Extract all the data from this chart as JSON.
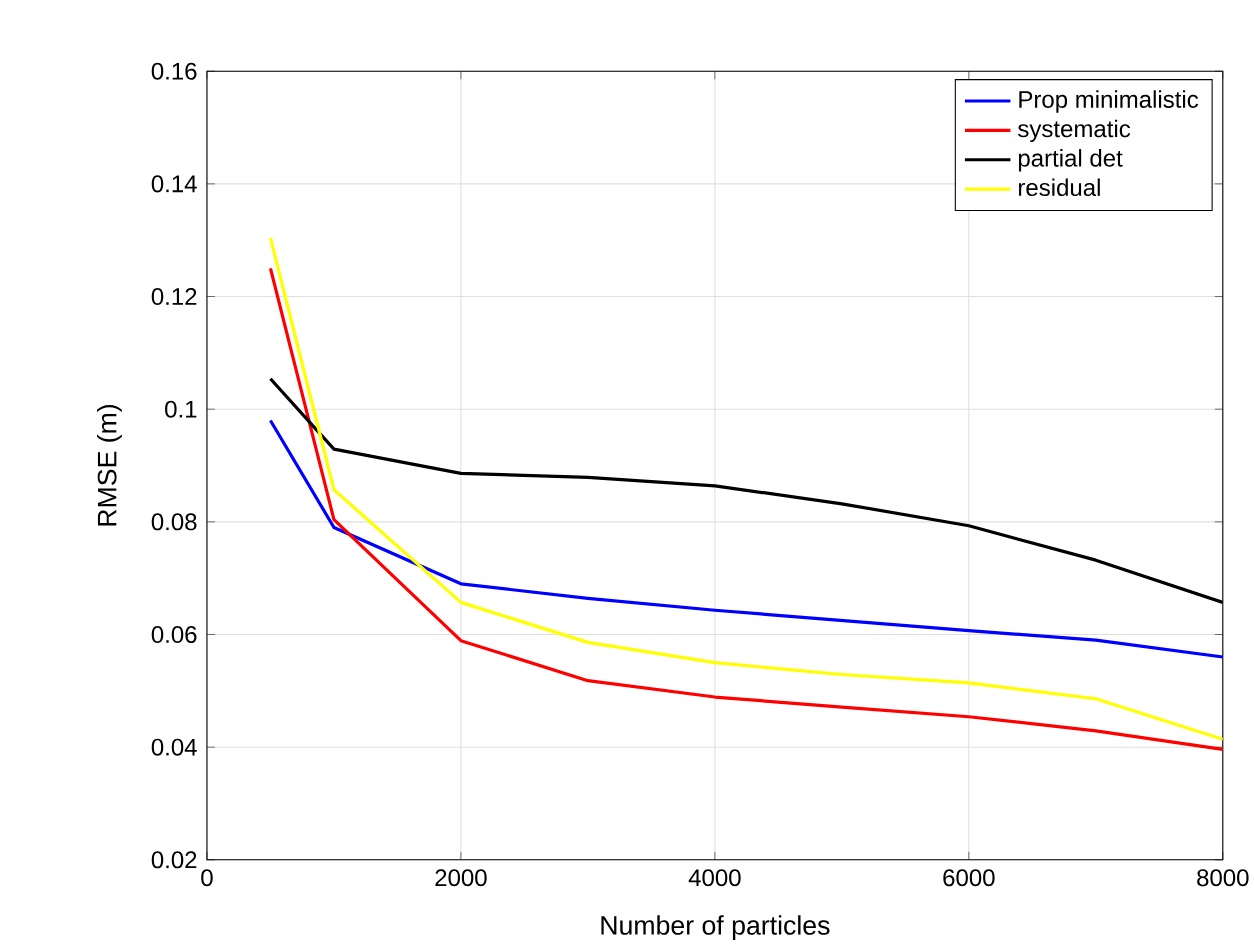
{
  "chart_data": {
    "type": "line",
    "xlabel": "Number of particles",
    "ylabel": "RMSE (m)",
    "x": [
      500,
      1000,
      2000,
      3000,
      4000,
      5000,
      6000,
      7000,
      8000
    ],
    "series": [
      {
        "name": "Prop minimalistic",
        "color": "#0000ff",
        "values": [
          0.098,
          0.079,
          0.069,
          0.0664,
          0.0643,
          0.0625,
          0.0607,
          0.059,
          0.056
        ]
      },
      {
        "name": "systematic",
        "color": "#ff0000",
        "values": [
          0.125,
          0.0804,
          0.0589,
          0.0518,
          0.0489,
          0.0471,
          0.0454,
          0.0429,
          0.0396
        ]
      },
      {
        "name": "partial det",
        "color": "#000000",
        "values": [
          0.1054,
          0.0929,
          0.0886,
          0.0879,
          0.0864,
          0.0832,
          0.0793,
          0.0732,
          0.0657
        ]
      },
      {
        "name": "residual",
        "color": "#ffff00",
        "values": [
          0.1304,
          0.0857,
          0.0657,
          0.0586,
          0.055,
          0.0529,
          0.0514,
          0.0486,
          0.0414
        ]
      }
    ],
    "xlim": [
      0,
      8000
    ],
    "ylim": [
      0.02,
      0.16
    ],
    "xticks": [
      0,
      2000,
      4000,
      6000,
      8000
    ],
    "yticks": [
      0.02,
      0.04,
      0.06,
      0.08,
      0.1,
      0.12,
      0.14,
      0.16
    ],
    "grid": true,
    "legend": "top right",
    "marker": "none",
    "line_style": "solid"
  }
}
